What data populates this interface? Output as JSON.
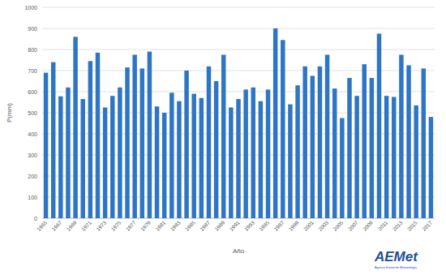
{
  "chart_data": {
    "type": "bar",
    "x_label": "Año",
    "y_label": "P(mm)",
    "categories": [
      "1965",
      null,
      "1967",
      null,
      "1969",
      null,
      "1971",
      null,
      "1973",
      null,
      "1975",
      null,
      "1977",
      null,
      "1979",
      null,
      "1981",
      null,
      "1983",
      null,
      "1985",
      null,
      "1987",
      null,
      "1989",
      null,
      "1991",
      null,
      "1993",
      null,
      "1995",
      null,
      "1997",
      null,
      "1999",
      null,
      "2001",
      null,
      "2003",
      null,
      "2005",
      null,
      "2007",
      null,
      "2009",
      null,
      "2011",
      null,
      "2013",
      null,
      "2015",
      null,
      "2017"
    ],
    "values": [
      690,
      740,
      578,
      620,
      860,
      565,
      745,
      785,
      525,
      580,
      620,
      715,
      775,
      710,
      790,
      530,
      500,
      595,
      555,
      700,
      590,
      570,
      720,
      650,
      775,
      525,
      565,
      610,
      620,
      555,
      610,
      900,
      845,
      540,
      630,
      720,
      675,
      720,
      775,
      615,
      475,
      665,
      580,
      730,
      665,
      875,
      580,
      575,
      775,
      725,
      535,
      710,
      480
    ],
    "color": "#2e75c5",
    "ylim": [
      0,
      1000
    ],
    "yticks": [
      0,
      100,
      200,
      300,
      400,
      500,
      600,
      700,
      800,
      900,
      1000
    ],
    "grid": true,
    "annotations": [
      {
        "text": "AEMet"
      },
      {
        "text": "Agencia Estatal de Meteorología"
      }
    ]
  }
}
